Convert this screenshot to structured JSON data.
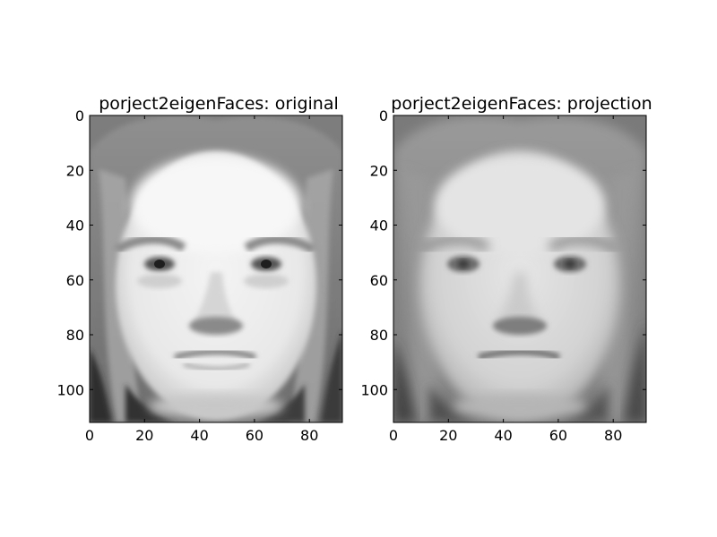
{
  "chart_data": [
    {
      "type": "heatmap",
      "title": "porject2eigenFaces: original",
      "content": "grayscale face image",
      "colormap": "gray",
      "xlim": [
        0,
        92
      ],
      "ylim": [
        112,
        0
      ],
      "y_inverted": true,
      "x_ticks": [
        "0",
        "20",
        "40",
        "60",
        "80"
      ],
      "y_ticks": [
        "0",
        "20",
        "40",
        "60",
        "80",
        "100"
      ],
      "grid": false
    },
    {
      "type": "heatmap",
      "title": "porject2eigenFaces: projection",
      "content": "grayscale face image (eigenface reconstruction)",
      "colormap": "gray",
      "xlim": [
        0,
        92
      ],
      "ylim": [
        112,
        0
      ],
      "y_inverted": true,
      "x_ticks": [
        "0",
        "20",
        "40",
        "60",
        "80"
      ],
      "y_ticks": [
        "0",
        "20",
        "40",
        "60",
        "80",
        "100"
      ],
      "grid": false
    }
  ],
  "colors": {
    "background": "#ffffff",
    "axis": "#000000"
  }
}
